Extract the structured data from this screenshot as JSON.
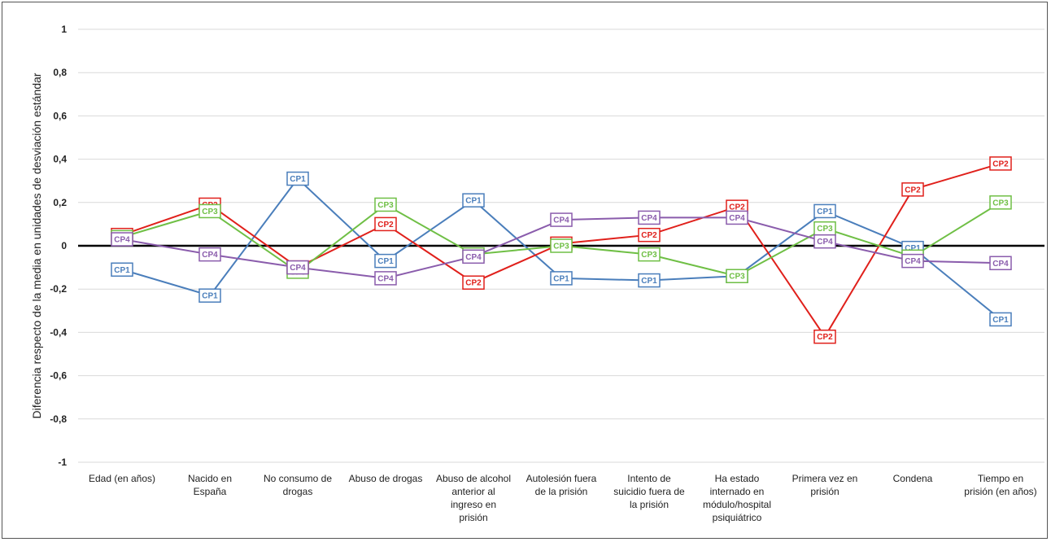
{
  "chart_data": {
    "type": "line",
    "title": "",
    "xlabel": "",
    "ylabel": "Diferencia respecto de la media en unidades de desviación estándar",
    "ylim": [
      -1,
      1
    ],
    "yticks": [
      "1",
      "0,8",
      "0,6",
      "0,4",
      "0,2",
      "0",
      "-0,2",
      "-0,4",
      "-0,6",
      "-0,8",
      "-1"
    ],
    "ytick_values": [
      1,
      0.8,
      0.6,
      0.4,
      0.2,
      0,
      -0.2,
      -0.4,
      -0.6,
      -0.8,
      -1
    ],
    "grid": true,
    "legend": "none",
    "categories": [
      [
        "Edad (en años)"
      ],
      [
        "Nacido en",
        "España"
      ],
      [
        "No consumo de",
        "drogas"
      ],
      [
        "Abuso de drogas"
      ],
      [
        "Abuso de alcohol",
        "anterior al",
        "ingreso en",
        "prisión"
      ],
      [
        "Autolesión fuera",
        "de la prisión"
      ],
      [
        "Intento de",
        "suicidio fuera de",
        "la prisión"
      ],
      [
        "Ha estado",
        "internado en",
        "módulo/hospital",
        "psiquiátrico"
      ],
      [
        "Primera vez en",
        "prisión"
      ],
      [
        "Condena"
      ],
      [
        "Tiempo en",
        "prisión (en años)"
      ]
    ],
    "series": [
      {
        "name": "CP1",
        "color": "#4a7ebb",
        "values": [
          -0.11,
          -0.23,
          0.31,
          -0.07,
          0.21,
          -0.15,
          -0.16,
          -0.14,
          0.16,
          -0.01,
          -0.34
        ]
      },
      {
        "name": "CP2",
        "color": "#e0201b",
        "values": [
          0.05,
          0.19,
          -0.1,
          0.1,
          -0.17,
          0.01,
          0.05,
          0.18,
          -0.42,
          0.26,
          0.38
        ]
      },
      {
        "name": "CP3",
        "color": "#6fbf45",
        "values": [
          0.04,
          0.16,
          -0.12,
          0.19,
          -0.04,
          0.0,
          -0.04,
          -0.14,
          0.08,
          -0.05,
          0.2
        ]
      },
      {
        "name": "CP4",
        "color": "#8a5cac",
        "values": [
          0.03,
          -0.04,
          -0.1,
          -0.15,
          -0.05,
          0.12,
          0.13,
          0.13,
          0.02,
          -0.07,
          -0.08
        ]
      }
    ]
  }
}
